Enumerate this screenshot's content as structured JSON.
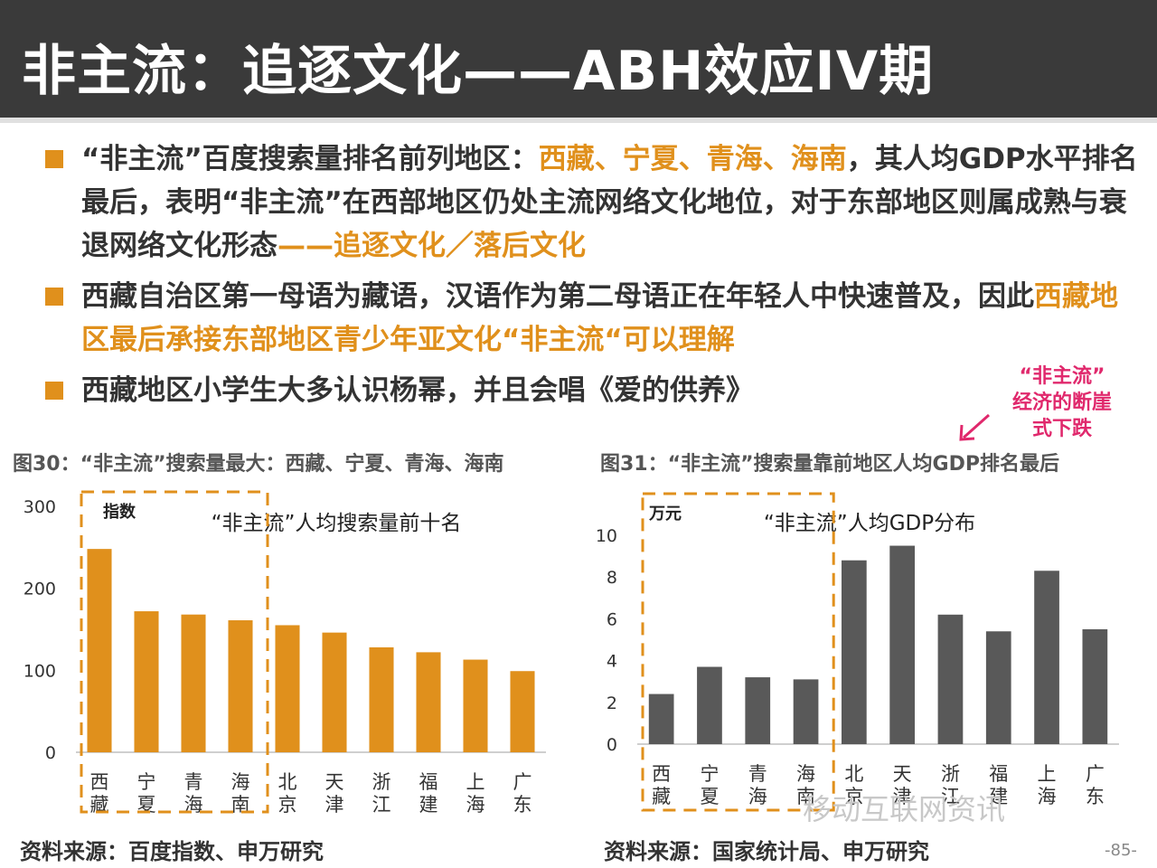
{
  "header": {
    "title": "非主流：追逐文化——ABH效应IV期"
  },
  "bullets": [
    {
      "parts": [
        {
          "text": "“非主流”百度搜索量排名前列地区：",
          "hl": false
        },
        {
          "text": "西藏、宁夏、青海、海南",
          "hl": true
        },
        {
          "text": "，其人均GDP水平排名最后，表明“非主流”在西部地区仍处主流网络文化地位，对于东部地区则属成熟与衰退网络文化形态",
          "hl": false
        },
        {
          "text": "——追逐文化／落后文化",
          "hl": true
        }
      ]
    },
    {
      "parts": [
        {
          "text": "西藏自治区第一母语为藏语，汉语作为第二母语正在年轻人中快速普及，因此",
          "hl": false
        },
        {
          "text": "西藏地区最后承接东部地区青少年亚文化“非主流“可以理解",
          "hl": true
        }
      ]
    },
    {
      "parts": [
        {
          "text": "西藏地区小学生大多认识杨幂，并且会唱《爱的供养》",
          "hl": false
        }
      ]
    }
  ],
  "callout": {
    "lines": [
      "“非主流”",
      "经济的断崖",
      "式下跌"
    ]
  },
  "captions": {
    "fig30": "图30：“非主流”搜索量最大：西藏、宁夏、青海、海南",
    "fig31": "图31：“非主流”搜索量靠前地区人均GDP排名最后"
  },
  "sources": {
    "left": "资料来源：百度指数、申万研究",
    "right": "资料来源：国家统计局、申万研究"
  },
  "page_number": "-85-",
  "watermark": "移动互联网资讯",
  "colors": {
    "title_bg": "#3a3a3a",
    "accent": "#e0901c",
    "gray_bar": "#595959",
    "callout": "#e0286c"
  },
  "chart_data": [
    {
      "type": "bar",
      "title": "“非主流”人均搜索量前十名",
      "unit_label": "指数",
      "categories": [
        "西藏",
        "宁夏",
        "青海",
        "海南",
        "北京",
        "天津",
        "浙江",
        "福建",
        "上海",
        "广东"
      ],
      "values": [
        248,
        172,
        168,
        161,
        155,
        146,
        128,
        122,
        113,
        99
      ],
      "ylim": [
        0,
        300
      ],
      "yticks": [
        0,
        100,
        200,
        300
      ],
      "color": "#e0901c",
      "highlight_first_n": 4,
      "grid": false
    },
    {
      "type": "bar",
      "title": "“非主流”人均GDP分布",
      "unit_label": "万元",
      "categories": [
        "西藏",
        "宁夏",
        "青海",
        "海南",
        "北京",
        "天津",
        "浙江",
        "福建",
        "上海",
        "广东"
      ],
      "values": [
        2.4,
        3.7,
        3.2,
        3.1,
        8.8,
        9.5,
        6.2,
        5.4,
        8.3,
        5.5
      ],
      "ylim": [
        0,
        10
      ],
      "yticks": [
        0,
        2,
        4,
        6,
        8,
        10
      ],
      "color": "#595959",
      "highlight_first_n": 4,
      "grid": false
    }
  ]
}
